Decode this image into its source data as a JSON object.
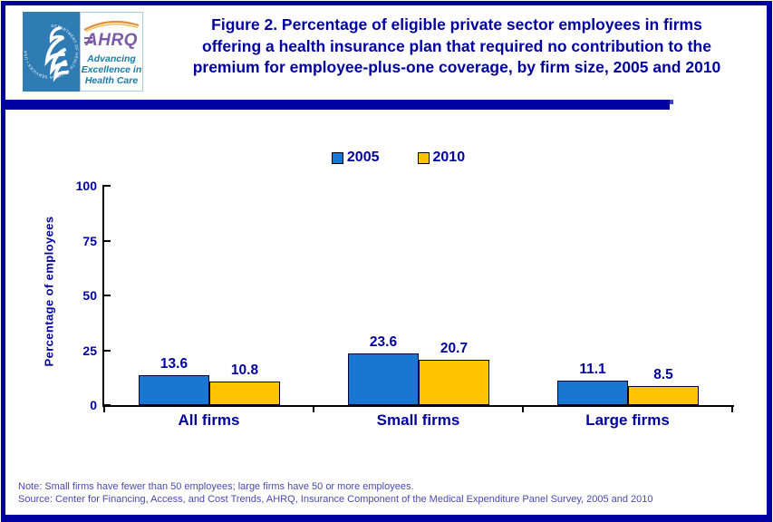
{
  "header": {
    "logo": {
      "acronym": "AHRQ",
      "tagline_lines": [
        "Advancing",
        "Excellence in",
        "Health Care"
      ],
      "hhs_seal_text": "DEPARTMENT OF HEALTH & HUMAN SERVICES • USA"
    },
    "title_lines": [
      "Figure 2. Percentage of eligible private sector employees in firms",
      "offering a health insurance plan that required no contribution to the",
      "premium for employee-plus-one coverage, by firm size, 2005 and 2010"
    ]
  },
  "chart_data": {
    "type": "bar",
    "title": "Percentage of eligible private sector employees in firms offering a health insurance plan that required no contribution to the premium for employee-plus-one coverage, by firm size, 2005 and 2010",
    "categories": [
      "All firms",
      "Small firms",
      "Large firms"
    ],
    "series": [
      {
        "name": "2005",
        "color": "#1777D2",
        "values": [
          13.6,
          23.6,
          11.1
        ]
      },
      {
        "name": "2010",
        "color": "#FFC600",
        "values": [
          10.8,
          20.7,
          8.5
        ]
      }
    ],
    "xlabel": "",
    "ylabel": "Percentage of employees",
    "ylim": [
      0,
      100
    ],
    "yticks": [
      0,
      25,
      50,
      75,
      100
    ],
    "grid": false,
    "legend_position": "top-center",
    "data_labels": true
  },
  "footer": {
    "note": "Note: Small firms have fewer than 50 employees; large firms have 50 or more employees.",
    "source": "Source: Center for Financing, Access, and Cost Trends, AHRQ, Insurance Component of the Medical Expenditure Panel Survey, 2005 and 2010"
  },
  "colors": {
    "frame_navy": "#0000A0",
    "title_navy": "#0000A0",
    "bar_2005_blue": "#1777D2",
    "bar_2010_yellow": "#FFC600",
    "axis_black": "#000000",
    "footer_text": "#4A4AAE",
    "hhs_seal_blue": "#2F7CB5",
    "ahrq_purple": "#7B5BA5",
    "ahrq_teal": "#177CA8",
    "swoosh_orange": "#E89A3C"
  }
}
